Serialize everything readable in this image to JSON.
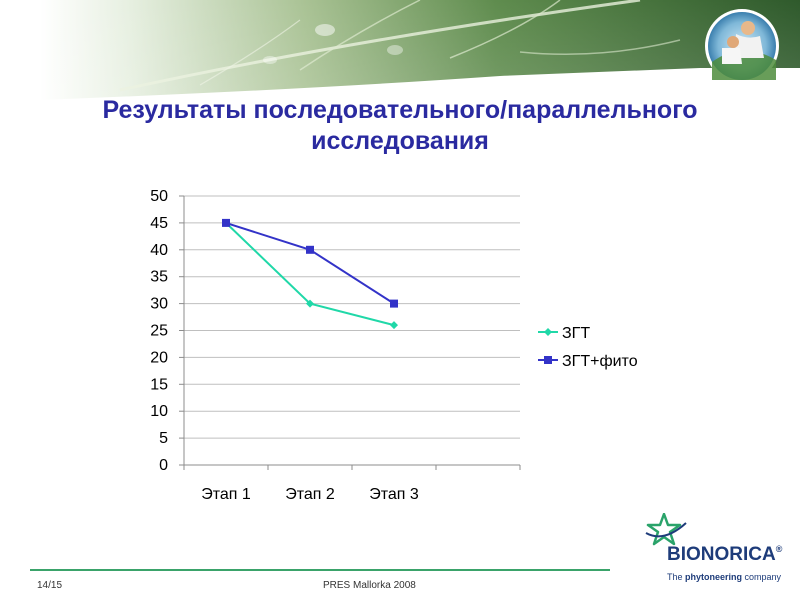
{
  "slide": {
    "title_line1": "Результаты последовательного/параллельного",
    "title_line2": "исследования"
  },
  "footer": {
    "page": "14/15",
    "event": "PRES  Mallorka  2008"
  },
  "logo": {
    "name": "BIONORICA",
    "reg": "®",
    "tagline_pre": "The ",
    "tagline_bold": "phytoneering",
    "tagline_post": " company"
  },
  "colors": {
    "title": "#2a2aa0",
    "series1": "#20d8a8",
    "series2": "#3333c8",
    "footer_line": "#3aa36a",
    "logo": "#1e3c7a"
  },
  "chart_data": {
    "type": "line",
    "categories": [
      "Этап 1",
      "Этап 2",
      "Этап 3"
    ],
    "extra_empty_categories": 1,
    "series": [
      {
        "name": "ЗГТ",
        "values": [
          45,
          30,
          26
        ],
        "color": "#20d8a8",
        "marker": "diamond"
      },
      {
        "name": "ЗГТ+фито",
        "values": [
          45,
          40,
          30
        ],
        "color": "#3333c8",
        "marker": "square"
      }
    ],
    "yticks": [
      "0",
      "5",
      "10",
      "15",
      "20",
      "25",
      "30",
      "35",
      "40",
      "45",
      "50"
    ],
    "ylim": [
      0,
      50
    ],
    "grid": true,
    "legend": "right",
    "title": "",
    "xlabel": "",
    "ylabel": ""
  }
}
